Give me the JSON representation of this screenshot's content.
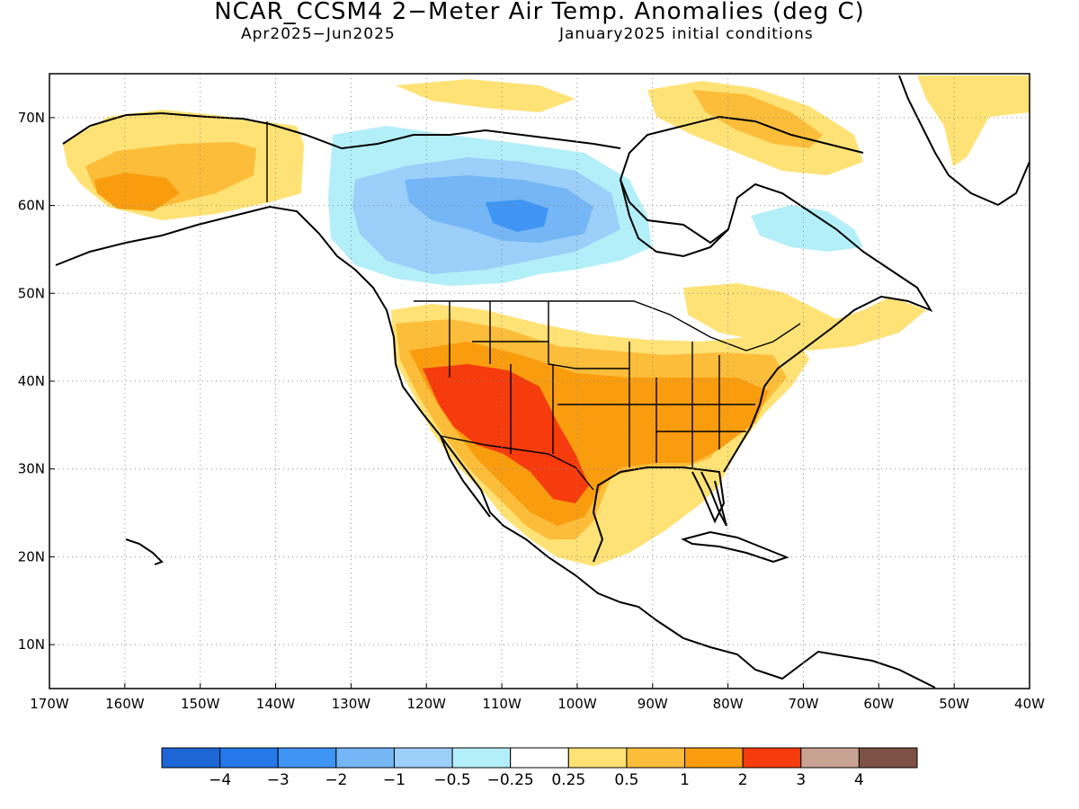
{
  "title": "NCAR_CCSM4 2−Meter Air Temp. Anomalies (deg C)",
  "subtitle_left": "Apr2025−Jun2025",
  "subtitle_right": "January2025 initial conditions",
  "map": {
    "projection": "equirectangular",
    "lon_range": [
      -170,
      -40
    ],
    "lat_range": [
      5,
      75
    ],
    "grid": "dotted",
    "lon_ticks": [
      {
        "value": -170,
        "label": "170W"
      },
      {
        "value": -160,
        "label": "160W"
      },
      {
        "value": -150,
        "label": "150W"
      },
      {
        "value": -140,
        "label": "140W"
      },
      {
        "value": -130,
        "label": "130W"
      },
      {
        "value": -120,
        "label": "120W"
      },
      {
        "value": -110,
        "label": "110W"
      },
      {
        "value": -100,
        "label": "100W"
      },
      {
        "value": -90,
        "label": "90W"
      },
      {
        "value": -80,
        "label": "80W"
      },
      {
        "value": -70,
        "label": "70W"
      },
      {
        "value": -60,
        "label": "60W"
      },
      {
        "value": -50,
        "label": "50W"
      },
      {
        "value": -40,
        "label": "40W"
      }
    ],
    "lat_ticks": [
      {
        "value": 70,
        "label": "70N"
      },
      {
        "value": 60,
        "label": "60N"
      },
      {
        "value": 50,
        "label": "50N"
      },
      {
        "value": 40,
        "label": "40N"
      },
      {
        "value": 30,
        "label": "30N"
      },
      {
        "value": 20,
        "label": "20N"
      },
      {
        "value": 10,
        "label": "10N"
      }
    ]
  },
  "legend": {
    "colors": [
      "#1c66d6",
      "#2478e8",
      "#3f95f4",
      "#75b6f6",
      "#9ccff9",
      "#b3eff8",
      "#ffffff",
      "#ffe275",
      "#fcbd3a",
      "#f99d0f",
      "#f63b0d",
      "#c7a293",
      "#7d5146"
    ],
    "labels": [
      "−4",
      "−3",
      "−2",
      "−1",
      "−0.5",
      "−0.25",
      "0.25",
      "0.5",
      "1",
      "2",
      "3",
      "4"
    ]
  }
}
